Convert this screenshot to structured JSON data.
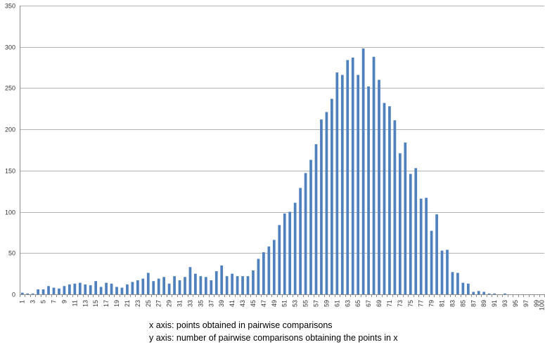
{
  "chart_data": {
    "type": "bar",
    "x": [
      1,
      2,
      3,
      4,
      5,
      6,
      7,
      8,
      9,
      10,
      11,
      12,
      13,
      14,
      15,
      16,
      17,
      18,
      19,
      20,
      21,
      22,
      23,
      24,
      25,
      26,
      27,
      28,
      29,
      30,
      31,
      32,
      33,
      34,
      35,
      36,
      37,
      38,
      39,
      40,
      41,
      42,
      43,
      44,
      45,
      46,
      47,
      48,
      49,
      50,
      51,
      52,
      53,
      54,
      55,
      56,
      57,
      58,
      59,
      60,
      61,
      62,
      63,
      64,
      65,
      66,
      67,
      68,
      69,
      70,
      71,
      72,
      73,
      74,
      75,
      76,
      77,
      78,
      79,
      80,
      81,
      82,
      83,
      84,
      85,
      86,
      87,
      88,
      89,
      90,
      91,
      92,
      93,
      94,
      95,
      96,
      97,
      98,
      99,
      100
    ],
    "values": [
      2,
      1,
      1,
      6,
      6,
      10,
      8,
      7,
      10,
      12,
      13,
      14,
      12,
      11,
      16,
      9,
      14,
      13,
      9,
      8,
      12,
      15,
      17,
      19,
      26,
      16,
      19,
      21,
      13,
      22,
      17,
      21,
      33,
      25,
      22,
      21,
      17,
      28,
      35,
      22,
      25,
      22,
      22,
      22,
      29,
      43,
      51,
      58,
      66,
      84,
      98,
      100,
      111,
      129,
      147,
      163,
      182,
      212,
      221,
      237,
      269,
      266,
      284,
      287,
      266,
      298,
      252,
      288,
      260,
      232,
      228,
      211,
      171,
      184,
      146,
      153,
      116,
      117,
      77,
      97,
      53,
      54,
      27,
      26,
      14,
      13,
      3,
      4,
      3,
      1,
      1,
      0,
      1,
      0,
      0,
      0,
      0,
      0,
      0,
      0
    ],
    "xticks": [
      "1",
      "3",
      "5",
      "7",
      "9",
      "11",
      "13",
      "15",
      "17",
      "19",
      "21",
      "23",
      "25",
      "27",
      "29",
      "31",
      "33",
      "35",
      "37",
      "39",
      "41",
      "43",
      "45",
      "47",
      "49",
      "51",
      "53",
      "55",
      "57",
      "59",
      "61",
      "63",
      "65",
      "67",
      "69",
      "71",
      "73",
      "75",
      "77",
      "79",
      "81",
      "83",
      "85",
      "87",
      "89",
      "91",
      "93",
      "95",
      "97",
      "99",
      "100"
    ],
    "yticks": [
      "0",
      "50",
      "100",
      "150",
      "200",
      "250",
      "300",
      "350"
    ],
    "ylim": [
      0,
      350
    ],
    "grid": true,
    "bar_color": "#4f81bd",
    "grid_color": "#b3b3b3",
    "captions": [
      "x axis: points obtained in pairwise comparisons",
      "y axis: number of pairwise comparisons obtaining the points in x"
    ]
  }
}
